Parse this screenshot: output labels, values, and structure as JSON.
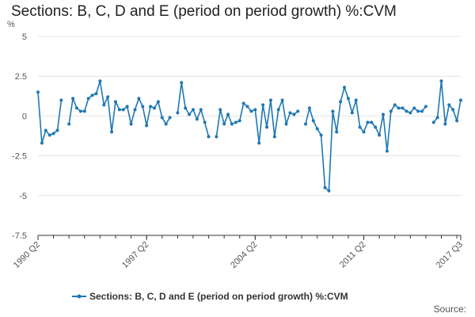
{
  "title": "Sections: B, C, D and E (period on period growth) %:CVM",
  "source": "Source:",
  "chart_data": {
    "type": "line",
    "title": "Sections: B, C, D and E (period on period growth) %:CVM",
    "ylabel": "%",
    "xlabel": "",
    "ylim": [
      -7.5,
      5
    ],
    "yticks": [
      5,
      2.5,
      0,
      -2.5,
      -5,
      -7.5
    ],
    "ytick_labels": [
      "5",
      "2.5",
      "0",
      "-2.5",
      "-5",
      "-7.5"
    ],
    "x_start": "1990 Q2",
    "x_end": "2017 Q3",
    "xtick_labels": [
      "1990 Q2",
      "1997 Q2",
      "2004 Q2",
      "2011 Q2",
      "2017 Q3"
    ],
    "xtick_index": [
      0,
      28,
      56,
      84,
      109
    ],
    "grid": "horizontal",
    "legend_position": "bottom",
    "series": [
      {
        "name": "Sections: B, C, D and E (period on period growth) %:CVM",
        "color": "#1f77b4",
        "values": [
          1.5,
          -1.7,
          -0.9,
          -1.2,
          -1.1,
          -0.9,
          1.0,
          null,
          -0.5,
          1.1,
          0.5,
          0.3,
          0.3,
          1.1,
          1.3,
          1.4,
          2.2,
          0.7,
          1.2,
          -1.0,
          0.9,
          0.4,
          0.4,
          0.6,
          -0.5,
          0.4,
          1.1,
          0.6,
          -0.6,
          0.6,
          0.5,
          0.9,
          -0.1,
          -0.5,
          -0.1,
          null,
          0.2,
          2.1,
          0.5,
          0.1,
          0.4,
          -0.2,
          0.4,
          -0.4,
          -1.3,
          null,
          -1.3,
          0.4,
          -0.5,
          0.1,
          -0.5,
          -0.4,
          -0.3,
          0.8,
          0.6,
          0.3,
          0.4,
          -1.7,
          0.7,
          -0.7,
          1.0,
          -1.3,
          0.4,
          1.0,
          -0.5,
          0.2,
          0.1,
          0.3,
          null,
          -0.5,
          0.5,
          -0.3,
          -0.8,
          -1.2,
          -4.5,
          -4.7,
          0.3,
          -1.0,
          0.9,
          1.8,
          1.1,
          0.2,
          1.0,
          -0.7,
          -1.0,
          -0.4,
          -0.4,
          -0.7,
          -1.2,
          0.1,
          -2.2,
          0.3,
          0.7,
          0.5,
          0.5,
          0.3,
          0.2,
          0.5,
          0.3,
          0.3,
          0.6,
          null,
          -0.4,
          -0.1,
          2.2,
          -0.5,
          0.7,
          0.4,
          -0.3,
          1.0
        ]
      }
    ]
  }
}
